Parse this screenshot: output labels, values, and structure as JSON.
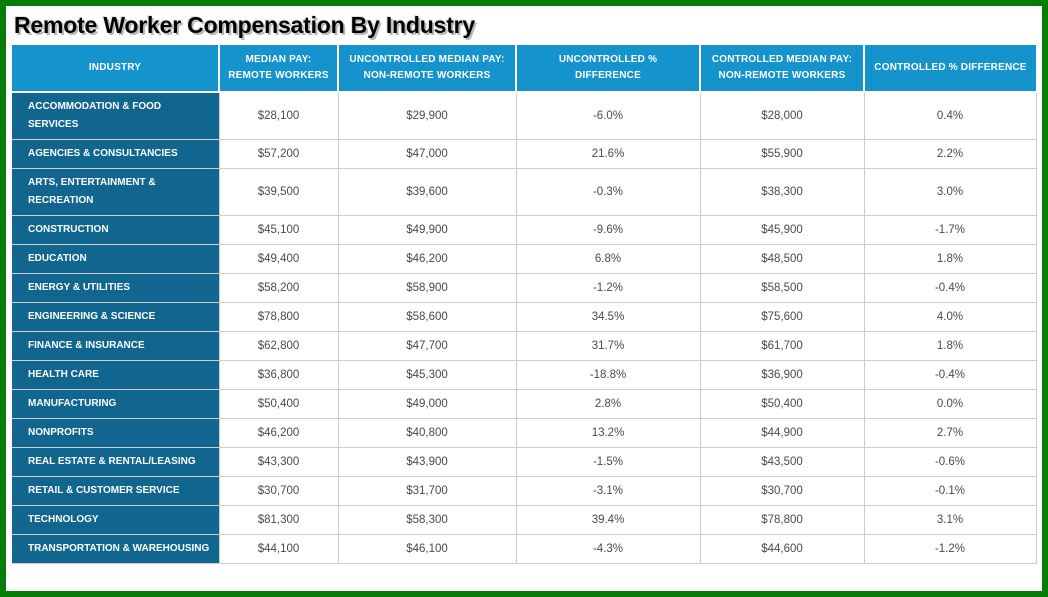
{
  "page_title": "Remote Worker Compensation By Industry",
  "colors": {
    "frame_green": "#077d07",
    "header_blue": "#1593cd",
    "industry_teal": "#10668e",
    "cell_text": "#4a4a4a",
    "header_text": "#ffffff"
  },
  "chart_data": {
    "type": "table",
    "title": "Remote Worker Compensation By Industry",
    "legend_position": "none",
    "columns": [
      {
        "key": "industry",
        "label": "INDUSTRY"
      },
      {
        "key": "median_pay_remote",
        "label": "MEDIAN PAY: REMOTE WORKERS"
      },
      {
        "key": "uncontrolled_median_pay_nonremote",
        "label": "UNCONTROLLED MEDIAN PAY: NON-REMOTE WORKERS"
      },
      {
        "key": "uncontrolled_pct_difference",
        "label": "UNCONTROLLED % DIFFERENCE"
      },
      {
        "key": "controlled_median_pay_nonremote",
        "label": "CONTROLLED MEDIAN PAY: NON-REMOTE WORKERS"
      },
      {
        "key": "controlled_pct_difference",
        "label": "CONTROLLED % DIFFERENCE"
      }
    ],
    "rows": [
      [
        "ACCOMMODATION & FOOD SERVICES",
        "$28,100",
        "$29,900",
        "-6.0%",
        "$28,000",
        "0.4%"
      ],
      [
        "AGENCIES & CONSULTANCIES",
        "$57,200",
        "$47,000",
        "21.6%",
        "$55,900",
        "2.2%"
      ],
      [
        "ARTS, ENTERTAINMENT & RECREATION",
        "$39,500",
        "$39,600",
        "-0.3%",
        "$38,300",
        "3.0%"
      ],
      [
        "CONSTRUCTION",
        "$45,100",
        "$49,900",
        "-9.6%",
        "$45,900",
        "-1.7%"
      ],
      [
        "EDUCATION",
        "$49,400",
        "$46,200",
        "6.8%",
        "$48,500",
        "1.8%"
      ],
      [
        "ENERGY & UTILITIES",
        "$58,200",
        "$58,900",
        "-1.2%",
        "$58,500",
        "-0.4%"
      ],
      [
        "ENGINEERING & SCIENCE",
        "$78,800",
        "$58,600",
        "34.5%",
        "$75,600",
        "4.0%"
      ],
      [
        "FINANCE & INSURANCE",
        "$62,800",
        "$47,700",
        "31.7%",
        "$61,700",
        "1.8%"
      ],
      [
        "HEALTH CARE",
        "$36,800",
        "$45,300",
        "-18.8%",
        "$36,900",
        "-0.4%"
      ],
      [
        "MANUFACTURING",
        "$50,400",
        "$49,000",
        "2.8%",
        "$50,400",
        "0.0%"
      ],
      [
        "NONPROFITS",
        "$46,200",
        "$40,800",
        "13.2%",
        "$44,900",
        "2.7%"
      ],
      [
        "REAL ESTATE & RENTAL/LEASING",
        "$43,300",
        "$43,900",
        "-1.5%",
        "$43,500",
        "-0.6%"
      ],
      [
        "RETAIL & CUSTOMER SERVICE",
        "$30,700",
        "$31,700",
        "-3.1%",
        "$30,700",
        "-0.1%"
      ],
      [
        "TECHNOLOGY",
        "$81,300",
        "$58,300",
        "39.4%",
        "$78,800",
        "3.1%"
      ],
      [
        "TRANSPORTATION & WAREHOUSING",
        "$44,100",
        "$46,100",
        "-4.3%",
        "$44,600",
        "-1.2%"
      ]
    ]
  }
}
